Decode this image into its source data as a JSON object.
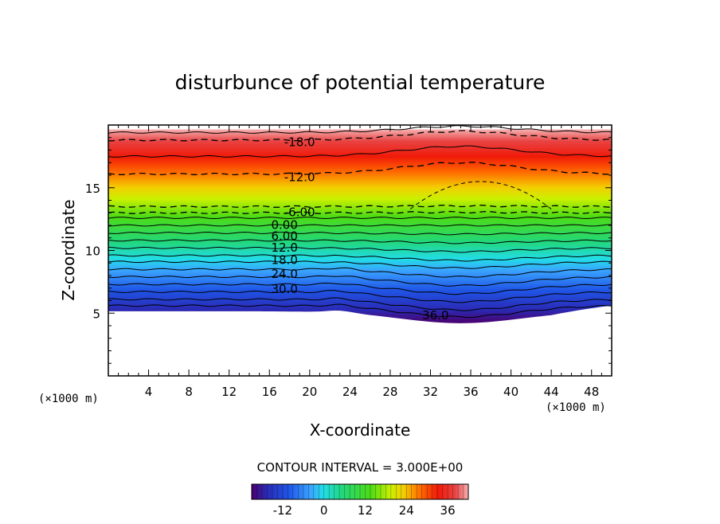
{
  "chart_data": {
    "type": "heatmap",
    "title": "disturbunce of potential temperature",
    "xlabel": "X-coordinate",
    "ylabel": "Z-coordinate",
    "x_unit_left": "(×1000 m)",
    "x_unit_right": "(×1000 m)",
    "xlim": [
      0,
      50
    ],
    "ylim": [
      0,
      20
    ],
    "x_ticks": [
      4,
      8,
      12,
      16,
      20,
      24,
      28,
      32,
      36,
      40,
      44,
      48
    ],
    "y_ticks": [
      5,
      10,
      15
    ],
    "contour_interval_label": "CONTOUR INTERVAL = 3.000E+00",
    "contour_labels": [
      {
        "text": "-18.0",
        "x": 19,
        "z": 18.7
      },
      {
        "text": "-12.0",
        "x": 19,
        "z": 15.9
      },
      {
        "text": "-6.00",
        "x": 19,
        "z": 13.1
      },
      {
        "text": "0.00",
        "x": 17.5,
        "z": 12.1
      },
      {
        "text": "6.00",
        "x": 17.5,
        "z": 11.2
      },
      {
        "text": "12.0",
        "x": 17.5,
        "z": 10.3
      },
      {
        "text": "18.0",
        "x": 17.5,
        "z": 9.3
      },
      {
        "text": "24.0",
        "x": 17.5,
        "z": 8.2
      },
      {
        "text": "30.0",
        "x": 17.5,
        "z": 7.0
      },
      {
        "text": "36.0",
        "x": 32.5,
        "z": 4.9
      }
    ],
    "color_range": [
      -21,
      42
    ],
    "colorbar_ticks": [
      -12,
      0,
      12,
      24,
      36
    ]
  }
}
